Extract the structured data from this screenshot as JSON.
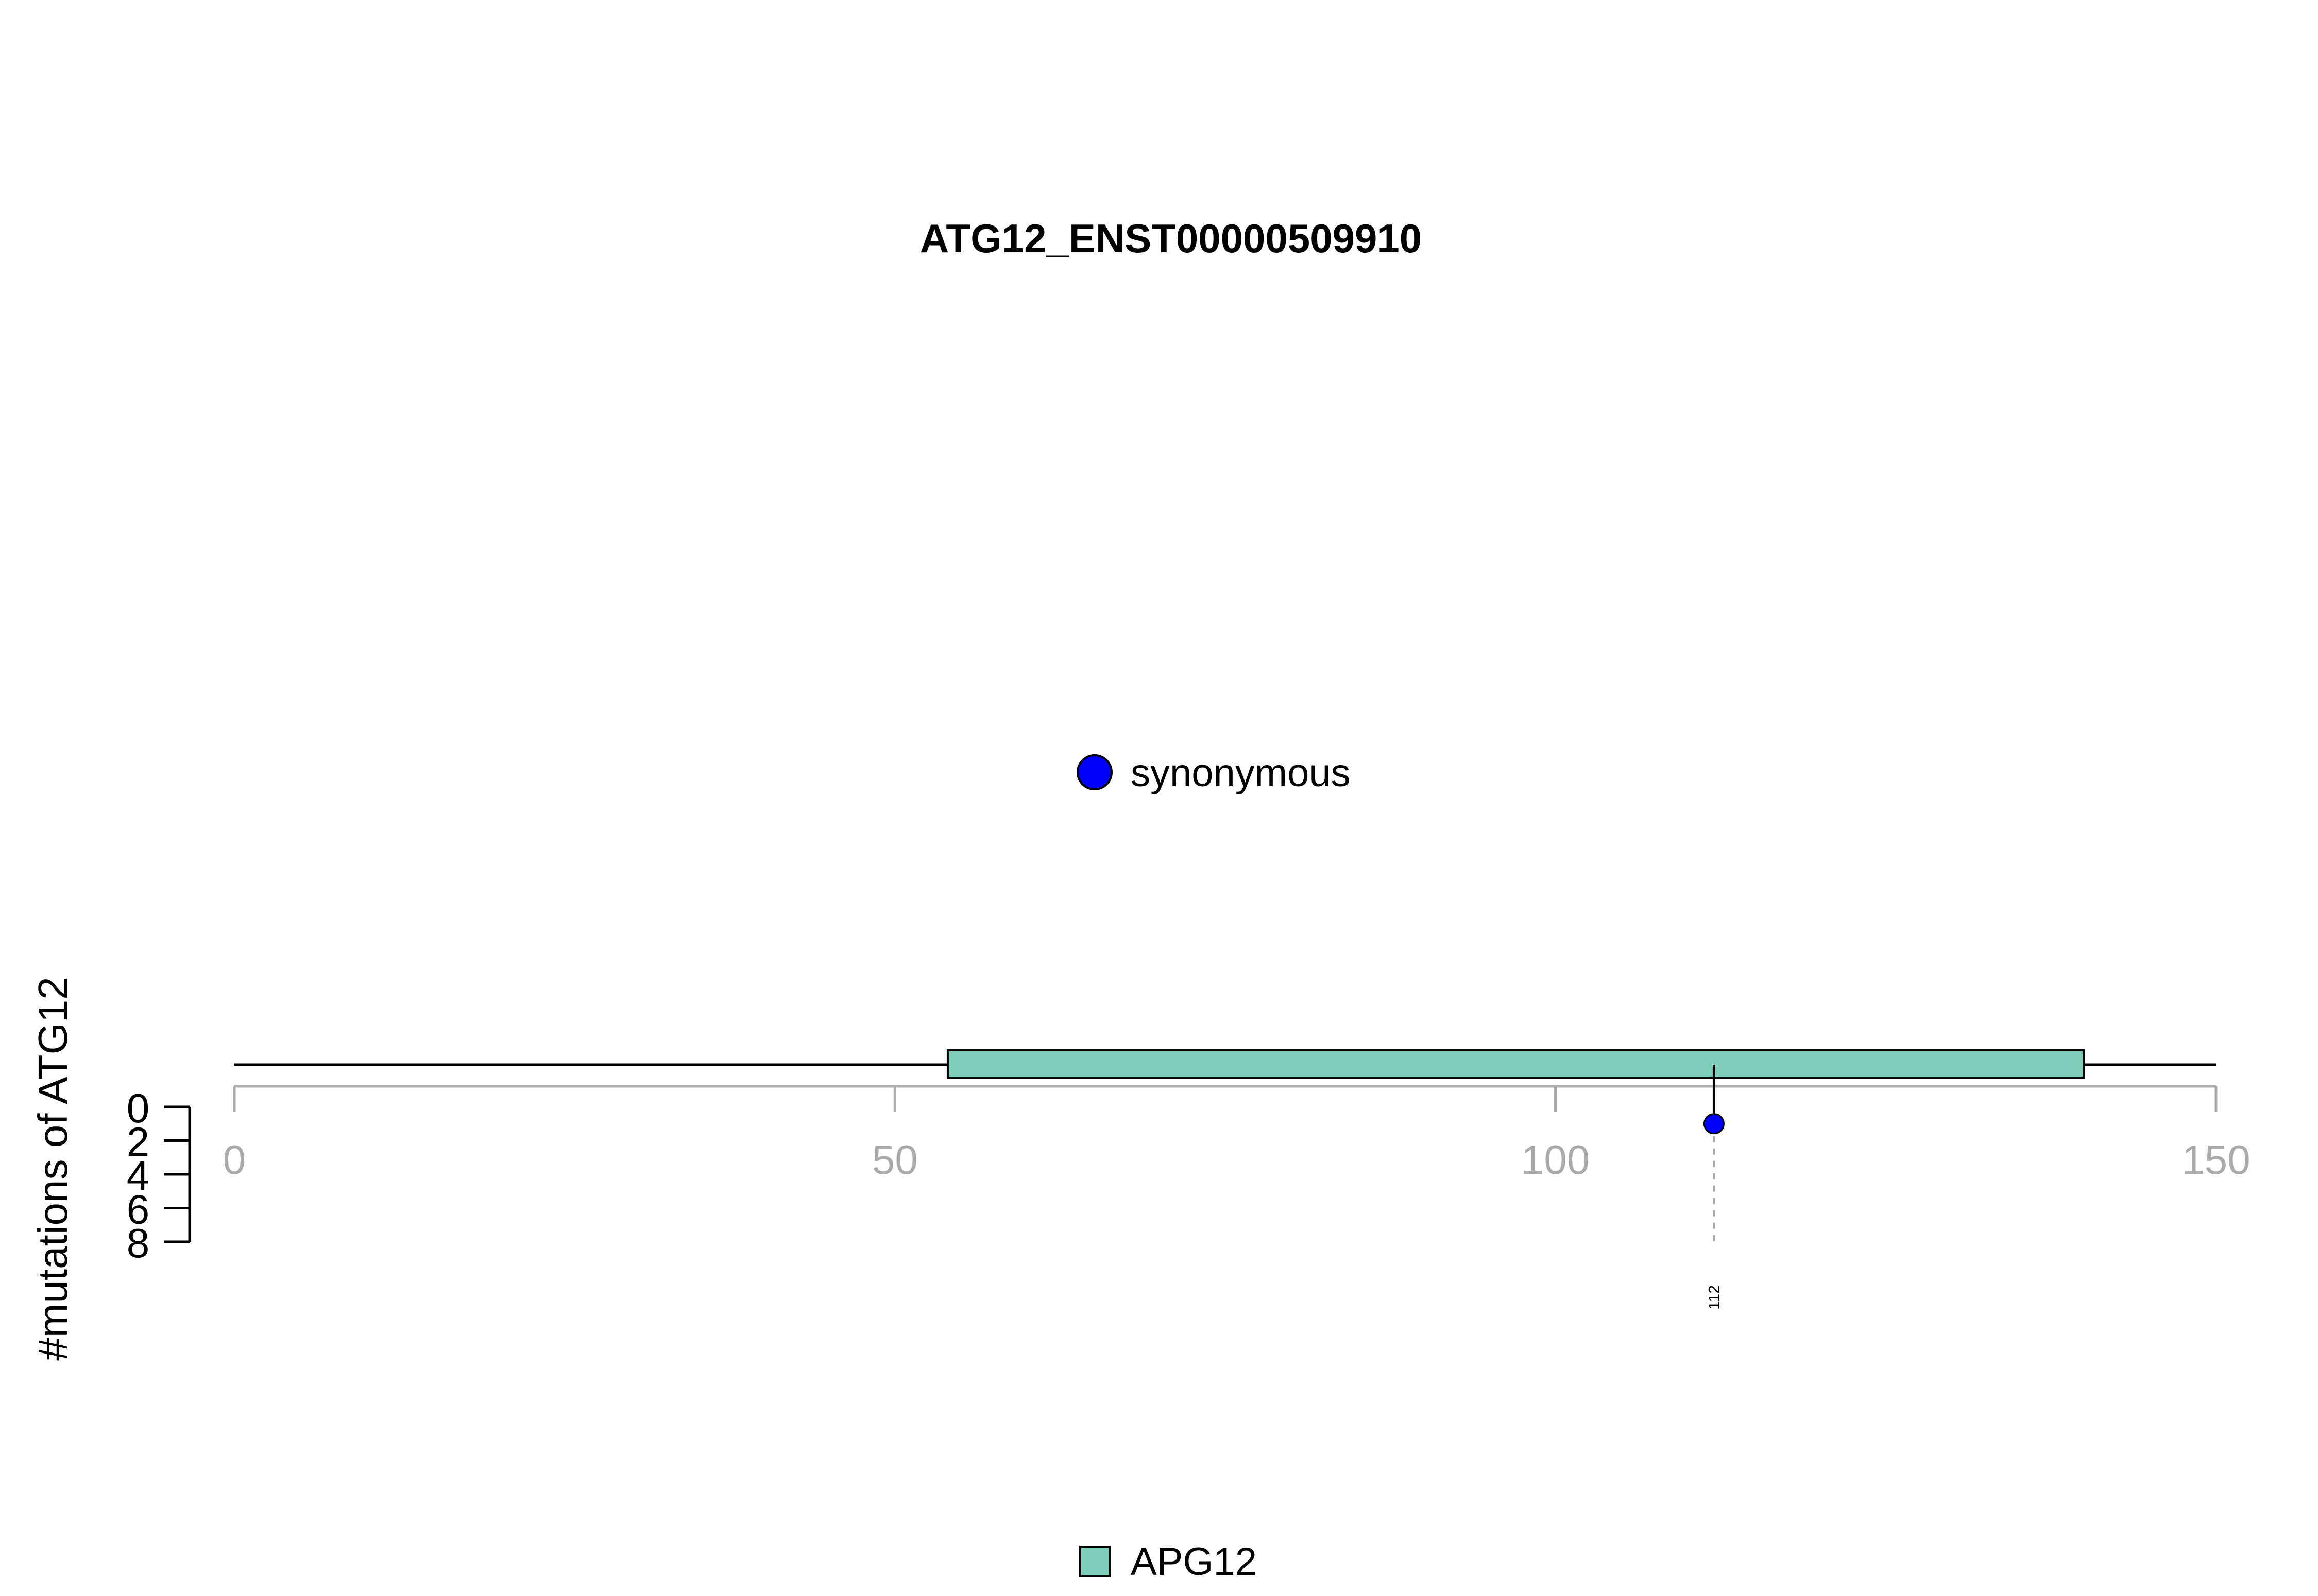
{
  "chart_data": {
    "type": "lollipop",
    "title": "ATG12_ENST00000509910",
    "ylabel": "#mutations of ATG12",
    "xlim": [
      0,
      150
    ],
    "x_ticks": [
      "0",
      "50",
      "100",
      "150"
    ],
    "ylim": [
      0,
      8
    ],
    "y_ticks": [
      "0",
      "2",
      "4",
      "6",
      "8"
    ],
    "mutations": [
      {
        "position": 112,
        "count": 1,
        "type": "synonymous",
        "label": "112"
      }
    ],
    "domains": [
      {
        "name": "APG12",
        "start": 54,
        "end": 140,
        "color": "#7FCDBB"
      }
    ],
    "legend_mutation_types": [
      {
        "label": "synonymous",
        "color": "#0000FF"
      }
    ],
    "legend_domains": [
      {
        "label": "APG12",
        "color": "#7FCDBB"
      }
    ]
  }
}
